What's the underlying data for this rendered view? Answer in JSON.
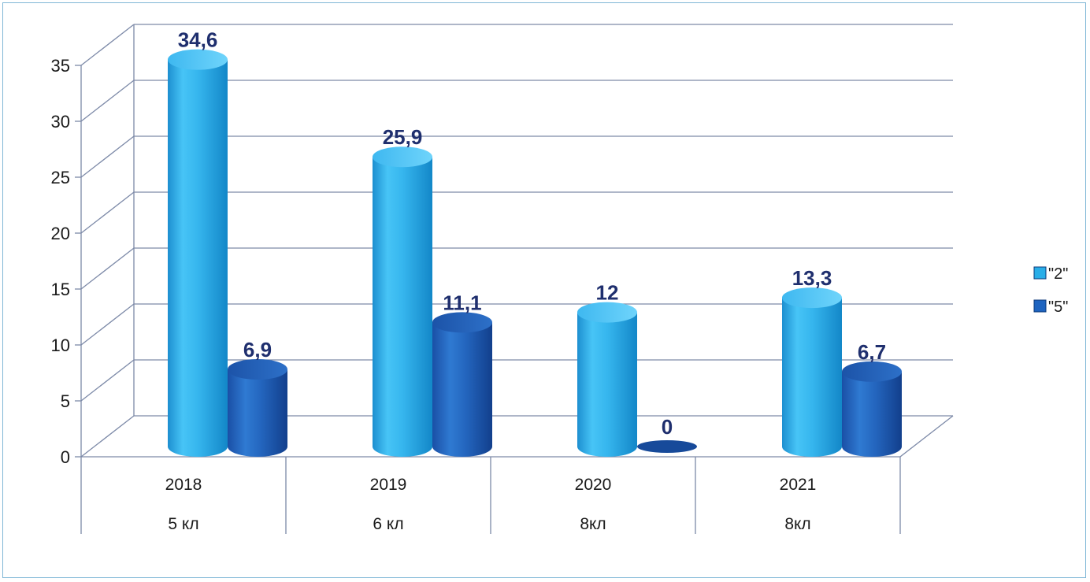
{
  "chart_data": {
    "type": "bar",
    "categories": [
      "2018",
      "2019",
      "2020",
      "2021"
    ],
    "subcategories": [
      "5 кл",
      "6 кл",
      "8кл",
      "8кл"
    ],
    "series": [
      {
        "name": "\"2\"",
        "values": [
          34.6,
          25.9,
          12,
          13.3
        ],
        "labels": [
          "34,6",
          "25,9",
          "12",
          "13,3"
        ]
      },
      {
        "name": "\"5\"",
        "values": [
          6.9,
          11.1,
          0,
          6.7
        ],
        "labels": [
          "6,9",
          "11,1",
          "0",
          "6,7"
        ]
      }
    ],
    "yticks": [
      "0",
      "5",
      "10",
      "15",
      "20",
      "25",
      "30",
      "35"
    ],
    "ylim": [
      0,
      35
    ],
    "grid": true,
    "legend_position": "right",
    "colors": {
      "series_1": "#29aee8",
      "series_2": "#1e64c0",
      "data_label": "#1f2f6e",
      "grid": "#7d8aa8"
    }
  }
}
